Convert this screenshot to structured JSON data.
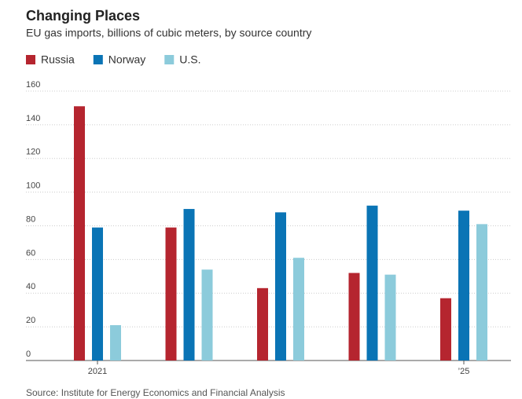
{
  "chart_data": {
    "type": "bar",
    "title": "Changing Places",
    "subtitle": "EU gas imports, billions of cubic meters, by source country",
    "source": "Source: Institute for Energy Economics and Financial Analysis",
    "categories": [
      "2021",
      null,
      null,
      null,
      "’25"
    ],
    "series": [
      {
        "name": "Russia",
        "color": "#b5252f",
        "values": [
          151,
          79,
          43,
          52,
          37
        ]
      },
      {
        "name": "Norway",
        "color": "#0a74b5",
        "values": [
          79,
          90,
          88,
          92,
          89
        ]
      },
      {
        "name": "U.S.",
        "color": "#8ccbdb",
        "values": [
          21,
          54,
          61,
          51,
          81
        ]
      }
    ],
    "ylim": [
      0,
      160
    ],
    "yticks": [
      0,
      20,
      40,
      60,
      80,
      100,
      120,
      140,
      160
    ],
    "grid": true
  }
}
